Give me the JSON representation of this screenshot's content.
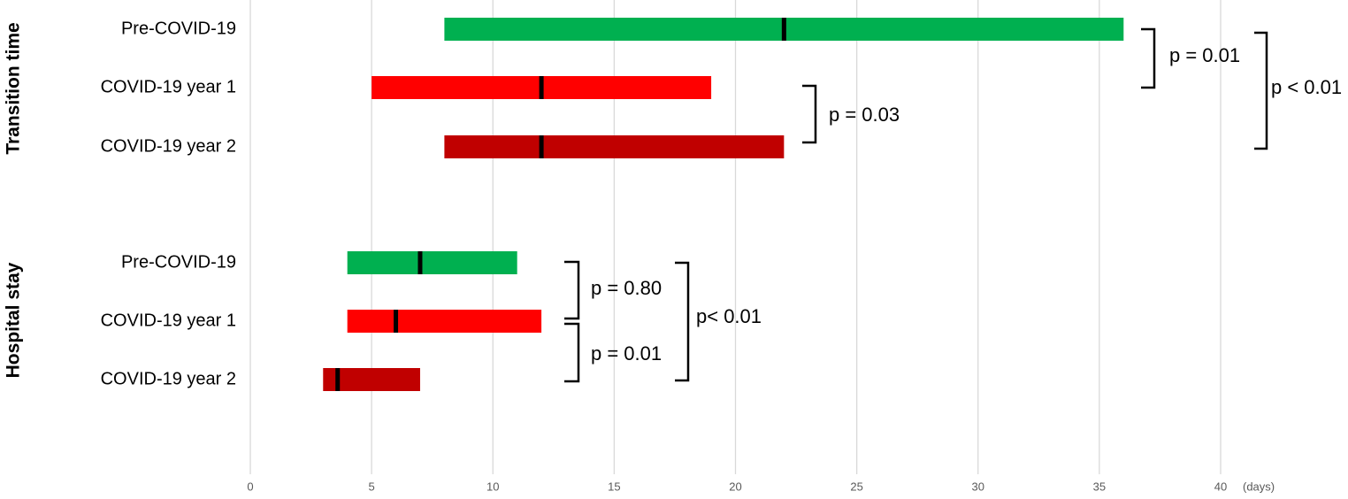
{
  "chart_data": {
    "type": "range_bar",
    "xlim": [
      0,
      40
    ],
    "xticks": [
      0,
      5,
      10,
      15,
      20,
      25,
      30,
      35,
      40
    ],
    "xlabel": "(days)",
    "grid": true,
    "colors": [
      "#00b050",
      "#ff0000",
      "#c00000"
    ],
    "groups": [
      {
        "name": "Transition time",
        "categories": [
          "Pre-COVID-19",
          "COVID-19 year 1",
          "COVID-19 year 2"
        ],
        "low": [
          8,
          5,
          8
        ],
        "median": [
          22,
          12,
          12
        ],
        "high": [
          36,
          19,
          22
        ]
      },
      {
        "name": "Hospital stay",
        "categories": [
          "Pre-COVID-19",
          "COVID-19 year 1",
          "COVID-19 year 2"
        ],
        "low": [
          4,
          4,
          3
        ],
        "median": [
          7,
          6,
          3.6
        ],
        "high": [
          11,
          12,
          7
        ]
      }
    ],
    "annotations": [
      "p = 0.01",
      "p = 0.03",
      "p < 0.01",
      "p = 0.80",
      "p = 0.01",
      "p< 0.01"
    ]
  }
}
